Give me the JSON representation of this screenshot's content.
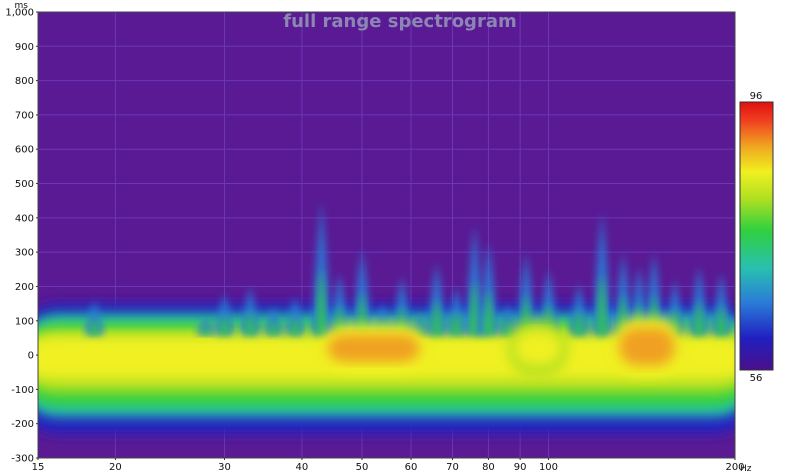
{
  "chart_data": {
    "type": "heatmap",
    "title": "full range spectrogram",
    "xlabel": "",
    "ylabel": "",
    "x_unit": "Hz",
    "y_unit": "ms",
    "x_scale": "log",
    "xlim": [
      15,
      200
    ],
    "ylim": [
      -300,
      1000
    ],
    "x_ticks": [
      15,
      20,
      30,
      40,
      50,
      60,
      70,
      80,
      90,
      100,
      200
    ],
    "y_ticks": [
      -300,
      -200,
      -100,
      0,
      100,
      200,
      300,
      400,
      500,
      600,
      700,
      800,
      900,
      1000
    ],
    "colorbar": {
      "min": 56,
      "max": 96,
      "min_label": "56",
      "max_label": "96"
    },
    "grid": true,
    "background_color": "#5a1a94",
    "colormap": [
      "#4a0f8a",
      "#2020c0",
      "#2a7bd8",
      "#28c0b0",
      "#30d040",
      "#b0e020",
      "#f0f020",
      "#f0a020",
      "#f04020",
      "#e01010"
    ],
    "ridges": [
      {
        "freq": 18.5,
        "top_ms": 160
      },
      {
        "freq": 28,
        "top_ms": 110
      },
      {
        "freq": 30,
        "top_ms": 180
      },
      {
        "freq": 33,
        "top_ms": 200
      },
      {
        "freq": 36,
        "top_ms": 140
      },
      {
        "freq": 39,
        "top_ms": 170
      },
      {
        "freq": 43,
        "top_ms": 450
      },
      {
        "freq": 46,
        "top_ms": 240
      },
      {
        "freq": 50,
        "top_ms": 310
      },
      {
        "freq": 54,
        "top_ms": 150
      },
      {
        "freq": 58,
        "top_ms": 230
      },
      {
        "freq": 62,
        "top_ms": 120
      },
      {
        "freq": 66,
        "top_ms": 270
      },
      {
        "freq": 71,
        "top_ms": 200
      },
      {
        "freq": 76,
        "top_ms": 380
      },
      {
        "freq": 80,
        "top_ms": 330
      },
      {
        "freq": 86,
        "top_ms": 150
      },
      {
        "freq": 92,
        "top_ms": 300
      },
      {
        "freq": 100,
        "top_ms": 250
      },
      {
        "freq": 112,
        "top_ms": 210
      },
      {
        "freq": 122,
        "top_ms": 420
      },
      {
        "freq": 132,
        "top_ms": 300
      },
      {
        "freq": 140,
        "top_ms": 260
      },
      {
        "freq": 148,
        "top_ms": 300
      },
      {
        "freq": 160,
        "top_ms": 220
      },
      {
        "freq": 175,
        "top_ms": 260
      },
      {
        "freq": 190,
        "top_ms": 240
      }
    ],
    "peak_regions": [
      {
        "freq_from": 44,
        "freq_to": 62,
        "ms_from": -20,
        "ms_to": 60,
        "level_db": 88
      },
      {
        "freq_from": 88,
        "freq_to": 105,
        "ms_from": -30,
        "ms_to": 70,
        "level_db": 84
      },
      {
        "freq_from": 130,
        "freq_to": 160,
        "ms_from": -30,
        "ms_to": 80,
        "level_db": 85
      }
    ]
  }
}
